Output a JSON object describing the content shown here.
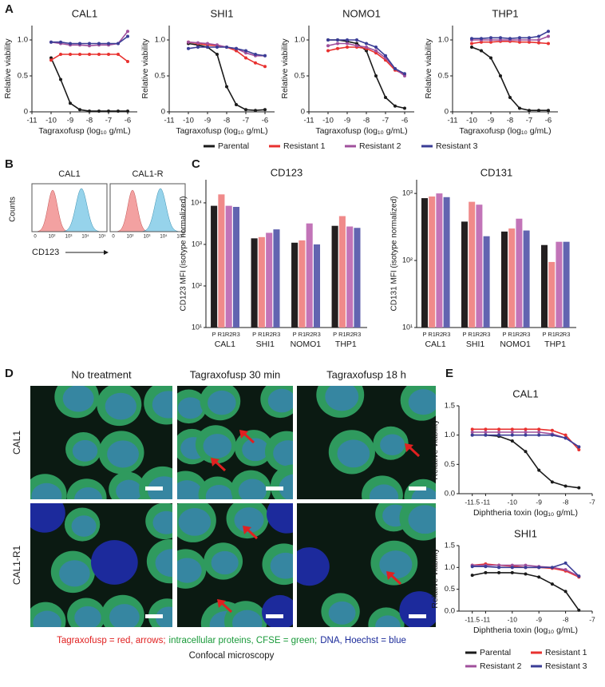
{
  "panel_labels": [
    "A",
    "B",
    "C",
    "D",
    "E"
  ],
  "chart_data": [
    {
      "type": "line",
      "title": "CAL1",
      "xlabel": "Tagraxofusp (log₁₀ g/mL)",
      "ylabel": "Relative viability",
      "x": [
        -10,
        -9.5,
        -9,
        -8.5,
        -8,
        -7.5,
        -7,
        -6.5,
        -6
      ],
      "xlim": [
        -11,
        -5.5
      ],
      "xticks": [
        -11,
        -10,
        -9,
        -8,
        -7,
        -6
      ],
      "ylim": [
        0,
        1.2
      ],
      "yticks": [
        0,
        0.5,
        {
          "value": 1,
          "label": "1.0"
        }
      ],
      "series": [
        {
          "name": "Parental",
          "color": "#1a1a1a",
          "values": [
            0.75,
            0.45,
            0.12,
            0.03,
            0.01,
            0.01,
            0.01,
            0.01,
            0.01
          ]
        },
        {
          "name": "Resistant 1",
          "color": "#e8312f",
          "values": [
            0.72,
            0.8,
            0.8,
            0.8,
            0.8,
            0.8,
            0.8,
            0.8,
            0.7
          ]
        },
        {
          "name": "Resistant 2",
          "color": "#a0509c",
          "values": [
            0.97,
            0.95,
            0.93,
            0.93,
            0.92,
            0.93,
            0.93,
            0.95,
            1.12
          ]
        },
        {
          "name": "Resistant 3",
          "color": "#3a3d96",
          "values": [
            0.97,
            0.97,
            0.95,
            0.95,
            0.95,
            0.95,
            0.95,
            0.95,
            1.05
          ]
        }
      ]
    },
    {
      "type": "line",
      "title": "SHI1",
      "xlabel": "Tagraxofusp (log₁₀ g/mL)",
      "ylabel": "Relative viability",
      "x": [
        -10,
        -9.5,
        -9,
        -8.5,
        -8,
        -7.5,
        -7,
        -6.5,
        -6
      ],
      "xlim": [
        -11,
        -5.5
      ],
      "xticks": [
        -11,
        -10,
        -9,
        -8,
        -7,
        -6
      ],
      "ylim": [
        0,
        1.2
      ],
      "yticks": [
        0,
        0.5,
        {
          "value": 1,
          "label": "1.0"
        }
      ],
      "series": [
        {
          "name": "Parental",
          "color": "#1a1a1a",
          "values": [
            0.95,
            0.93,
            0.9,
            0.8,
            0.35,
            0.1,
            0.03,
            0.02,
            0.03
          ]
        },
        {
          "name": "Resistant 1",
          "color": "#e8312f",
          "values": [
            0.97,
            0.95,
            0.93,
            0.92,
            0.9,
            0.85,
            0.75,
            0.68,
            0.63
          ]
        },
        {
          "name": "Resistant 2",
          "color": "#a0509c",
          "values": [
            0.97,
            0.96,
            0.95,
            0.93,
            0.9,
            0.88,
            0.82,
            0.78,
            0.78
          ]
        },
        {
          "name": "Resistant 3",
          "color": "#3a3d96",
          "values": [
            0.88,
            0.9,
            0.9,
            0.9,
            0.9,
            0.88,
            0.85,
            0.8,
            0.78
          ]
        }
      ]
    },
    {
      "type": "line",
      "title": "NOMO1",
      "xlabel": "Tagraxofusp (log₁₀ g/mL)",
      "ylabel": "Relative viability",
      "x": [
        -10,
        -9.5,
        -9,
        -8.5,
        -8,
        -7.5,
        -7,
        -6.5,
        -6
      ],
      "xlim": [
        -11,
        -5.5
      ],
      "xticks": [
        -11,
        -10,
        -9,
        -8,
        -7,
        -6
      ],
      "ylim": [
        0,
        1.2
      ],
      "yticks": [
        0,
        0.5,
        {
          "value": 1,
          "label": "1.0"
        }
      ],
      "series": [
        {
          "name": "Parental",
          "color": "#1a1a1a",
          "values": [
            1.0,
            1.0,
            0.98,
            0.95,
            0.85,
            0.5,
            0.2,
            0.08,
            0.05
          ]
        },
        {
          "name": "Resistant 1",
          "color": "#e8312f",
          "values": [
            0.85,
            0.88,
            0.9,
            0.9,
            0.88,
            0.82,
            0.72,
            0.58,
            0.52
          ]
        },
        {
          "name": "Resistant 2",
          "color": "#a0509c",
          "values": [
            0.92,
            0.95,
            0.95,
            0.92,
            0.9,
            0.85,
            0.75,
            0.6,
            0.5
          ]
        },
        {
          "name": "Resistant 3",
          "color": "#3a3d96",
          "values": [
            1.0,
            1.0,
            1.0,
            1.0,
            0.95,
            0.9,
            0.78,
            0.6,
            0.53
          ]
        }
      ]
    },
    {
      "type": "line",
      "title": "THP1",
      "xlabel": "Tagraxofusp (log₁₀ g/mL)",
      "ylabel": "Relative viability",
      "x": [
        -10,
        -9.5,
        -9,
        -8.5,
        -8,
        -7.5,
        -7,
        -6.5,
        -6
      ],
      "xlim": [
        -11,
        -5.5
      ],
      "xticks": [
        -11,
        -10,
        -9,
        -8,
        -7,
        -6
      ],
      "ylim": [
        0,
        1.2
      ],
      "yticks": [
        0,
        0.5,
        {
          "value": 1,
          "label": "1.0"
        }
      ],
      "series": [
        {
          "name": "Parental",
          "color": "#1a1a1a",
          "values": [
            0.9,
            0.85,
            0.75,
            0.5,
            0.2,
            0.05,
            0.02,
            0.02,
            0.02
          ]
        },
        {
          "name": "Resistant 1",
          "color": "#e8312f",
          "values": [
            0.95,
            0.97,
            0.97,
            0.98,
            0.98,
            0.97,
            0.97,
            0.96,
            0.95
          ]
        },
        {
          "name": "Resistant 2",
          "color": "#a0509c",
          "values": [
            1.0,
            1.0,
            1.0,
            1.0,
            1.0,
            1.0,
            1.0,
            1.0,
            1.05
          ]
        },
        {
          "name": "Resistant 3",
          "color": "#3a3d96",
          "values": [
            1.02,
            1.02,
            1.03,
            1.03,
            1.02,
            1.03,
            1.03,
            1.05,
            1.12
          ]
        }
      ]
    },
    {
      "type": "bar",
      "title": "CD123",
      "ylabel": "CD123 MFI (isotype normalized)",
      "log_scale": true,
      "categories": [
        "CAL1",
        "SHI1",
        "NOMO1",
        "THP1"
      ],
      "ylim": [
        10,
        36000
      ],
      "yticks": [
        {
          "value": 10,
          "label": "10¹"
        },
        {
          "value": 100,
          "label": "10²"
        },
        {
          "value": 1000,
          "label": "10³"
        },
        {
          "value": 10000,
          "label": "10⁴"
        }
      ],
      "series": [
        {
          "name": "P",
          "color": "#231f20",
          "values": [
            8500,
            1400,
            1100,
            2800
          ]
        },
        {
          "name": "R1",
          "color": "#f08a8a",
          "values": [
            16000,
            1500,
            1250,
            4800
          ]
        },
        {
          "name": "R2",
          "color": "#c274b8",
          "values": [
            8500,
            1900,
            3200,
            2700
          ]
        },
        {
          "name": "R3",
          "color": "#6264b0",
          "values": [
            8000,
            2300,
            1000,
            2500
          ]
        }
      ]
    },
    {
      "type": "bar",
      "title": "CD131",
      "ylabel": "CD131 MFI (isotype normalized)",
      "log_scale": true,
      "categories": [
        "CAL1",
        "SHI1",
        "NOMO1",
        "THP1"
      ],
      "ylim": [
        10,
        1600
      ],
      "yticks": [
        {
          "value": 10,
          "label": "10¹"
        },
        {
          "value": 100,
          "label": "10²"
        },
        {
          "value": 1000,
          "label": "10³"
        }
      ],
      "series": [
        {
          "name": "P",
          "color": "#231f20",
          "values": [
            850,
            380,
            270,
            170
          ]
        },
        {
          "name": "R1",
          "color": "#f08a8a",
          "values": [
            900,
            750,
            300,
            95
          ]
        },
        {
          "name": "R2",
          "color": "#c274b8",
          "values": [
            1000,
            680,
            420,
            190
          ]
        },
        {
          "name": "R3",
          "color": "#6264b0",
          "values": [
            880,
            230,
            280,
            190
          ]
        }
      ]
    },
    {
      "type": "line",
      "title": "CAL1",
      "xlabel": "Diphtheria toxin (log₁₀ g/mL)",
      "ylabel": "Relative viability",
      "x": [
        -11.5,
        -11,
        -10.5,
        -10,
        -9.5,
        -9,
        -8.5,
        -8,
        -7.5
      ],
      "xlim": [
        -12,
        -7
      ],
      "xticks": [
        -11.5,
        -11,
        -10,
        -9,
        -8,
        -7
      ],
      "ylim": [
        0,
        1.5
      ],
      "yticks": [
        {
          "value": 0,
          "label": "0.0"
        },
        0.5,
        {
          "value": 1,
          "label": "1.0"
        },
        1.5
      ],
      "series": [
        {
          "name": "Parental",
          "color": "#1a1a1a",
          "values": [
            1.0,
            1.0,
            0.98,
            0.9,
            0.72,
            0.4,
            0.2,
            0.13,
            0.1
          ]
        },
        {
          "name": "Resistant 1",
          "color": "#e8312f",
          "values": [
            1.1,
            1.1,
            1.1,
            1.1,
            1.1,
            1.1,
            1.08,
            1.0,
            0.75
          ]
        },
        {
          "name": "Resistant 2",
          "color": "#a0509c",
          "values": [
            1.05,
            1.05,
            1.05,
            1.05,
            1.05,
            1.05,
            1.02,
            0.95,
            0.8
          ]
        },
        {
          "name": "Resistant 3",
          "color": "#3a3d96",
          "values": [
            1.0,
            1.0,
            1.0,
            1.0,
            1.0,
            1.0,
            1.0,
            0.95,
            0.8
          ]
        }
      ]
    },
    {
      "type": "line",
      "title": "SHI1",
      "xlabel": "Diphtheria toxin (log₁₀ g/mL)",
      "ylabel": "Relative viability",
      "x": [
        -11.5,
        -11,
        -10.5,
        -10,
        -9.5,
        -9,
        -8.5,
        -8,
        -7.5
      ],
      "xlim": [
        -12,
        -7
      ],
      "xticks": [
        -11.5,
        -11,
        -10,
        -9,
        -8,
        -7
      ],
      "ylim": [
        0,
        1.5
      ],
      "yticks": [
        {
          "value": 0,
          "label": "0.0"
        },
        0.5,
        {
          "value": 1,
          "label": "1.0"
        },
        1.5
      ],
      "series": [
        {
          "name": "Parental",
          "color": "#1a1a1a",
          "values": [
            0.82,
            0.88,
            0.88,
            0.88,
            0.85,
            0.78,
            0.62,
            0.45,
            0.02
          ]
        },
        {
          "name": "Resistant 1",
          "color": "#e8312f",
          "values": [
            1.05,
            1.08,
            1.05,
            1.03,
            1.0,
            1.0,
            0.98,
            0.92,
            0.78
          ]
        },
        {
          "name": "Resistant 2",
          "color": "#a0509c",
          "values": [
            1.05,
            1.05,
            1.05,
            1.05,
            1.05,
            1.02,
            1.0,
            0.95,
            0.8
          ]
        },
        {
          "name": "Resistant 3",
          "color": "#3a3d96",
          "values": [
            1.02,
            1.02,
            1.0,
            1.0,
            1.0,
            1.0,
            1.0,
            1.1,
            0.8
          ]
        }
      ]
    }
  ],
  "flow": {
    "titles": [
      "CAL1",
      "CAL1-R"
    ],
    "ylabel": "Counts",
    "xlabel": "CD123",
    "xticks": [
      "0",
      "10²",
      "10³",
      "10⁴",
      "10⁵"
    ]
  },
  "microscopy": {
    "columns": [
      "No treatment",
      "Tagraxofusp 30 min",
      "Tagraxofusp 18 h"
    ],
    "rows": [
      "CAL1",
      "CAL1-R1"
    ],
    "caption": [
      {
        "text": "Tagraxofusp = red, arrows;",
        "color": "#e02020"
      },
      {
        "text": "intracellular proteins, CFSE = green;",
        "color": "#1a9a3a"
      },
      {
        "text": "DNA, Hoechst = blue",
        "color": "#1a2a9a"
      }
    ],
    "subcaption": "Confocal microscopy"
  }
}
